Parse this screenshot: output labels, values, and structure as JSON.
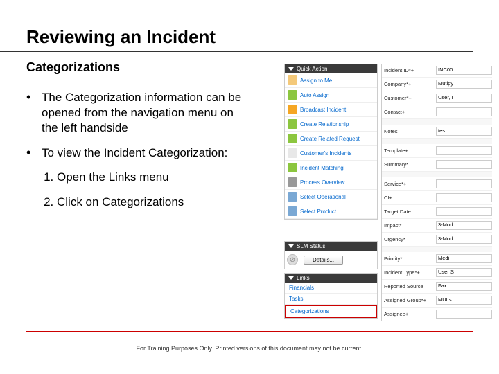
{
  "title": "Reviewing an Incident",
  "subtitle": "Categorizations",
  "bullets": [
    {
      "text": "The Categorization information can be opened from the navigation menu on the left handside"
    },
    {
      "text": "To view the Incident Categorization:"
    }
  ],
  "steps": [
    "Open the Links menu",
    "Click on Categorizations"
  ],
  "disclaimer": "For Training Purposes Only. Printed versions of this document may not be current.",
  "quickAction": {
    "header": "Quick Action",
    "items": [
      {
        "label": "Assign to Me",
        "color": "#f4c97a"
      },
      {
        "label": "Auto Assign",
        "color": "#8cc63f"
      },
      {
        "label": "Broadcast Incident",
        "color": "#f5a623"
      },
      {
        "label": "Create Relationship",
        "color": "#8cc63f"
      },
      {
        "label": "Create Related Request",
        "color": "#8cc63f"
      },
      {
        "label": "Customer's Incidents",
        "color": "#e8e8e8"
      },
      {
        "label": "Incident Matching",
        "color": "#8cc63f"
      },
      {
        "label": "Process Overview",
        "color": "#999999"
      },
      {
        "label": "Select Operational",
        "color": "#7aa8d4"
      },
      {
        "label": "Select Product",
        "color": "#7aa8d4"
      }
    ]
  },
  "slm": {
    "header": "SLM Status",
    "button": "Details..."
  },
  "links": {
    "header": "Links",
    "items": [
      "Financials",
      "Tasks",
      "Categorizations"
    ]
  },
  "form": [
    {
      "label": "Incident ID*+",
      "value": "INC00"
    },
    {
      "label": "Company*+",
      "value": "Mutipy"
    },
    {
      "label": "Customer*+",
      "value": "User, I"
    },
    {
      "label": "Contact+",
      "value": ""
    },
    {
      "sep": true
    },
    {
      "label": "Notes",
      "value": "tes."
    },
    {
      "sep": true
    },
    {
      "label": "Template+",
      "value": ""
    },
    {
      "label": "Summary*",
      "value": ""
    },
    {
      "sep": true
    },
    {
      "label": "Service*+",
      "value": ""
    },
    {
      "label": "CI+",
      "value": ""
    },
    {
      "label": "Target Date",
      "value": ""
    },
    {
      "label": "Impact*",
      "value": "3-Mod"
    },
    {
      "label": "Urgency*",
      "value": "3-Mod"
    },
    {
      "sep": true
    },
    {
      "label": "Priority*",
      "value": "Medi"
    },
    {
      "label": "Incident Type*+",
      "value": "User S"
    },
    {
      "label": "Reported Source",
      "value": "Fax"
    },
    {
      "label": "Assigned Group*+",
      "value": "MULs"
    },
    {
      "label": "Assignee+",
      "value": ""
    }
  ]
}
